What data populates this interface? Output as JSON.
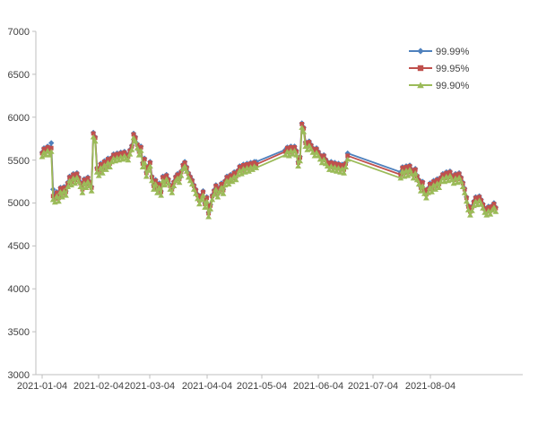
{
  "chart_data": {
    "type": "line",
    "title": "",
    "gridlines": false,
    "background": "#ffffff",
    "x_axis": {
      "start_date": "2021-01-04",
      "point_interval": "daily",
      "tick_labels": [
        "2021-01-04",
        "2021-02-04",
        "2021-03-04",
        "2021-04-04",
        "2021-05-04",
        "2021-06-04",
        "2021-07-04",
        "2021-08-04"
      ],
      "tick_day_offsets": [
        0,
        31,
        59,
        90,
        120,
        151,
        181,
        212
      ]
    },
    "y_axis": {
      "min": 3000,
      "max": 7000,
      "step": 500,
      "tick_labels": [
        "7000",
        "6500",
        "6000",
        "5500",
        "5000",
        "4500",
        "4000",
        "3500",
        "3000"
      ]
    },
    "legend": {
      "position": "top-right",
      "entries": [
        "99.99%",
        "99.95%",
        "99.90%"
      ]
    },
    "series": [
      {
        "name": "99.99%",
        "color": "#4F81BD",
        "marker": "diamond",
        "values": [
          5590,
          5640,
          5610,
          5660,
          5610,
          5700,
          5160,
          5060,
          5130,
          5070,
          5180,
          5120,
          5190,
          5140,
          5240,
          5310,
          5260,
          5340,
          5280,
          5350,
          5300,
          5240,
          5170,
          5280,
          5230,
          5300,
          5250,
          5190,
          5820,
          5770,
          5410,
          5370,
          5460,
          5400,
          5490,
          5440,
          5520,
          5470,
          5530,
          5570,
          5540,
          5580,
          5550,
          5590,
          5560,
          5600,
          5570,
          5550,
          5620,
          5670,
          5810,
          5770,
          5690,
          5610,
          5660,
          5470,
          5520,
          5360,
          5430,
          5480,
          5310,
          5210,
          5270,
          5170,
          5230,
          5140,
          5310,
          5260,
          5330,
          5280,
          5210,
          5170,
          5250,
          5310,
          5340,
          5290,
          5370,
          5450,
          5480,
          5420,
          5350,
          5310,
          5270,
          5210,
          5160,
          5100,
          5040,
          5090,
          5140,
          5000,
          5070,
          4890,
          4980,
          5090,
          5150,
          5210,
          5120,
          5180,
          5230,
          5160,
          5260,
          5310,
          5270,
          5330,
          5300,
          5360,
          5320,
          5380,
          5430,
          5390,
          5450,
          5410,
          5460,
          5420,
          5470,
          5440,
          5480,
          5480,
          null,
          null,
          null,
          null,
          null,
          null,
          null,
          null,
          null,
          null,
          null,
          null,
          null,
          null,
          null,
          5620,
          5650,
          5600,
          5660,
          5620,
          5660,
          5610,
          5480,
          5540,
          5930,
          5880,
          5710,
          5670,
          5720,
          5680,
          5640,
          5600,
          5640,
          5600,
          5560,
          5520,
          5560,
          5510,
          5480,
          5440,
          5480,
          5430,
          5470,
          5420,
          5460,
          5410,
          5450,
          5400,
          5470,
          5580,
          null,
          null,
          null,
          null,
          null,
          null,
          null,
          null,
          null,
          null,
          null,
          null,
          null,
          null,
          null,
          null,
          null,
          null,
          null,
          null,
          null,
          null,
          null,
          null,
          null,
          null,
          null,
          null,
          5360,
          5420,
          5360,
          5430,
          5370,
          5440,
          5390,
          5340,
          5400,
          5320,
          5270,
          5190,
          5250,
          5160,
          5110,
          5170,
          5230,
          5180,
          5260,
          5210,
          5280,
          5230,
          5300,
          5340,
          5300,
          5360,
          5310,
          5370,
          5320,
          5280,
          5340,
          5290,
          5350,
          5300,
          5240,
          5170,
          5070,
          4970,
          4910,
          4960,
          5020,
          5070,
          5030,
          5080,
          5040,
          4990,
          4940,
          4910,
          4960,
          4920,
          4970,
          5000,
          4950
        ]
      },
      {
        "name": "99.95%",
        "color": "#C0504D",
        "marker": "square",
        "values": [
          5580,
          5630,
          5600,
          5650,
          5600,
          5640,
          5080,
          5050,
          5120,
          5060,
          5170,
          5110,
          5180,
          5130,
          5230,
          5300,
          5250,
          5330,
          5270,
          5340,
          5290,
          5230,
          5160,
          5270,
          5220,
          5290,
          5240,
          5180,
          5810,
          5760,
          5400,
          5360,
          5450,
          5390,
          5480,
          5430,
          5510,
          5460,
          5520,
          5560,
          5530,
          5570,
          5540,
          5580,
          5550,
          5590,
          5560,
          5540,
          5610,
          5660,
          5800,
          5760,
          5680,
          5600,
          5650,
          5460,
          5510,
          5350,
          5420,
          5470,
          5300,
          5200,
          5260,
          5160,
          5220,
          5130,
          5300,
          5250,
          5320,
          5270,
          5200,
          5160,
          5240,
          5300,
          5330,
          5280,
          5360,
          5440,
          5470,
          5410,
          5340,
          5300,
          5260,
          5200,
          5150,
          5090,
          5030,
          5080,
          5130,
          4990,
          5060,
          4880,
          4970,
          5080,
          5140,
          5200,
          5110,
          5170,
          5220,
          5150,
          5250,
          5300,
          5260,
          5320,
          5290,
          5350,
          5310,
          5370,
          5420,
          5380,
          5440,
          5400,
          5450,
          5410,
          5460,
          5430,
          5470,
          5450,
          null,
          null,
          null,
          null,
          null,
          null,
          null,
          null,
          null,
          null,
          null,
          null,
          null,
          null,
          null,
          5600,
          5640,
          5590,
          5650,
          5610,
          5650,
          5600,
          5470,
          5530,
          5920,
          5870,
          5700,
          5660,
          5710,
          5670,
          5630,
          5590,
          5630,
          5590,
          5550,
          5510,
          5550,
          5500,
          5470,
          5430,
          5470,
          5420,
          5460,
          5410,
          5450,
          5400,
          5440,
          5390,
          5460,
          5550,
          null,
          null,
          null,
          null,
          null,
          null,
          null,
          null,
          null,
          null,
          null,
          null,
          null,
          null,
          null,
          null,
          null,
          null,
          null,
          null,
          null,
          null,
          null,
          null,
          null,
          null,
          null,
          null,
          5330,
          5410,
          5350,
          5420,
          5360,
          5430,
          5380,
          5330,
          5390,
          5310,
          5260,
          5180,
          5240,
          5150,
          5100,
          5160,
          5220,
          5170,
          5250,
          5200,
          5270,
          5220,
          5290,
          5330,
          5290,
          5350,
          5300,
          5360,
          5310,
          5270,
          5330,
          5280,
          5340,
          5290,
          5230,
          5160,
          5060,
          4960,
          4900,
          4950,
          5010,
          5060,
          5020,
          5070,
          5030,
          4980,
          4930,
          4900,
          4950,
          4910,
          4960,
          4990,
          4940
        ]
      },
      {
        "name": "99.90%",
        "color": "#9BBB59",
        "marker": "triangle",
        "values": [
          5540,
          5590,
          5560,
          5610,
          5560,
          5600,
          5040,
          5010,
          5080,
          5020,
          5130,
          5070,
          5140,
          5090,
          5190,
          5260,
          5210,
          5290,
          5230,
          5300,
          5250,
          5190,
          5120,
          5230,
          5180,
          5250,
          5200,
          5140,
          5770,
          5720,
          5360,
          5320,
          5410,
          5350,
          5440,
          5390,
          5470,
          5420,
          5480,
          5520,
          5490,
          5530,
          5500,
          5540,
          5510,
          5550,
          5520,
          5500,
          5570,
          5620,
          5760,
          5720,
          5640,
          5560,
          5610,
          5420,
          5470,
          5310,
          5380,
          5430,
          5260,
          5160,
          5220,
          5120,
          5180,
          5090,
          5260,
          5210,
          5280,
          5230,
          5160,
          5120,
          5200,
          5260,
          5290,
          5240,
          5320,
          5400,
          5430,
          5370,
          5300,
          5260,
          5220,
          5160,
          5110,
          5050,
          4990,
          5040,
          5090,
          4950,
          5020,
          4840,
          4930,
          5040,
          5100,
          5160,
          5070,
          5130,
          5180,
          5110,
          5210,
          5260,
          5220,
          5280,
          5250,
          5310,
          5270,
          5330,
          5380,
          5340,
          5400,
          5360,
          5410,
          5370,
          5420,
          5390,
          5430,
          5410,
          null,
          null,
          null,
          null,
          null,
          null,
          null,
          null,
          null,
          null,
          null,
          null,
          null,
          null,
          null,
          5560,
          5600,
          5550,
          5610,
          5570,
          5610,
          5560,
          5430,
          5490,
          5880,
          5830,
          5660,
          5620,
          5670,
          5630,
          5590,
          5550,
          5590,
          5550,
          5510,
          5470,
          5510,
          5460,
          5430,
          5390,
          5430,
          5380,
          5420,
          5370,
          5410,
          5360,
          5400,
          5350,
          5420,
          5510,
          null,
          null,
          null,
          null,
          null,
          null,
          null,
          null,
          null,
          null,
          null,
          null,
          null,
          null,
          null,
          null,
          null,
          null,
          null,
          null,
          null,
          null,
          null,
          null,
          null,
          null,
          null,
          null,
          5290,
          5370,
          5310,
          5380,
          5320,
          5390,
          5340,
          5290,
          5350,
          5270,
          5220,
          5140,
          5200,
          5110,
          5060,
          5120,
          5180,
          5130,
          5210,
          5160,
          5230,
          5180,
          5250,
          5290,
          5250,
          5310,
          5260,
          5320,
          5270,
          5230,
          5290,
          5240,
          5300,
          5250,
          5190,
          5120,
          5020,
          4920,
          4860,
          4910,
          4970,
          5020,
          4980,
          5030,
          4990,
          4940,
          4890,
          4860,
          4910,
          4870,
          4920,
          4950,
          4900
        ]
      }
    ]
  },
  "colors": {
    "axis_line": "#BFBFBF",
    "label_text": "#404040",
    "series_blue": "#4F81BD",
    "series_red": "#C0504D",
    "series_green": "#9BBB59"
  }
}
